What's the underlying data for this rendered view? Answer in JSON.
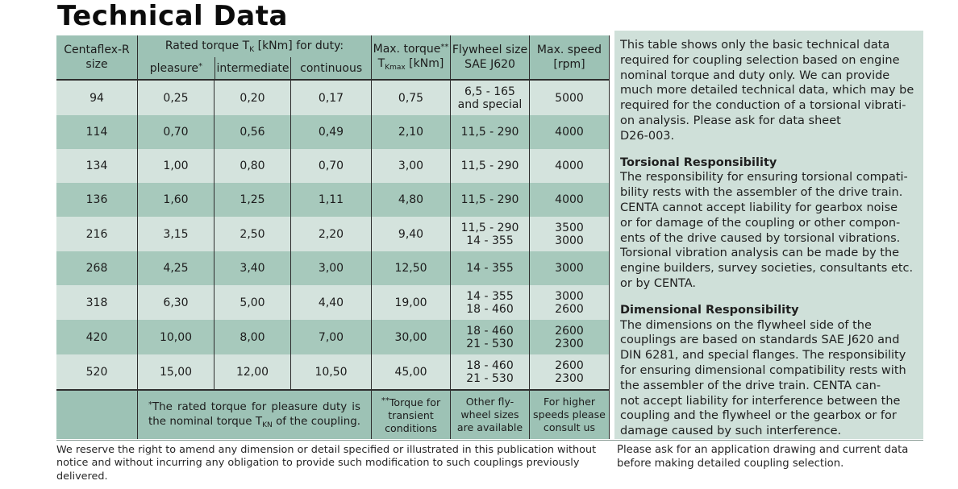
{
  "page": {
    "title": "Technical Data"
  },
  "colors": {
    "header_band": "#9dc2b5",
    "row_light": "#d4e3dd",
    "row_dark": "#a7c9bc",
    "panel_bg": "#cfe0d9",
    "border_dark": "#2e2e2e"
  },
  "table": {
    "header": {
      "size_line1": "Centaflex-R",
      "size_line2": "size",
      "rated_pre": "Rated torque T",
      "rated_sub": "K",
      "rated_post": " [kNm] for duty:",
      "duty": [
        {
          "label": "pleasure",
          "mark": "*"
        },
        {
          "label": "intermediate",
          "mark": ""
        },
        {
          "label": "continuous",
          "mark": ""
        }
      ],
      "max_torque_line1": "Max. torque",
      "max_torque_mark": "**",
      "max_torque_line2_pre": "T",
      "max_torque_line2_sub": "Kmax",
      "max_torque_line2_post": " [kNm]",
      "flywheel_line1": "Flywheel size",
      "flywheel_line2": "SAE J620",
      "speed_line1": "Max. speed",
      "speed_line2": "[rpm]"
    },
    "rows": [
      {
        "size": "94",
        "pleasure": "0,25",
        "intermediate": "0,20",
        "continuous": "0,17",
        "max_torque": "0,75",
        "flywheel1": "6,5 - 165",
        "flywheel2": "and special",
        "speed1": "5000",
        "speed2": ""
      },
      {
        "size": "114",
        "pleasure": "0,70",
        "intermediate": "0,56",
        "continuous": "0,49",
        "max_torque": "2,10",
        "flywheel1": "11,5 - 290",
        "flywheel2": "",
        "speed1": "4000",
        "speed2": ""
      },
      {
        "size": "134",
        "pleasure": "1,00",
        "intermediate": "0,80",
        "continuous": "0,70",
        "max_torque": "3,00",
        "flywheel1": "11,5 - 290",
        "flywheel2": "",
        "speed1": "4000",
        "speed2": ""
      },
      {
        "size": "136",
        "pleasure": "1,60",
        "intermediate": "1,25",
        "continuous": "1,11",
        "max_torque": "4,80",
        "flywheel1": "11,5 - 290",
        "flywheel2": "",
        "speed1": "4000",
        "speed2": ""
      },
      {
        "size": "216",
        "pleasure": "3,15",
        "intermediate": "2,50",
        "continuous": "2,20",
        "max_torque": "9,40",
        "flywheel1": "11,5 - 290",
        "flywheel2": "14 - 355",
        "speed1": "3500",
        "speed2": "3000"
      },
      {
        "size": "268",
        "pleasure": "4,25",
        "intermediate": "3,40",
        "continuous": "3,00",
        "max_torque": "12,50",
        "flywheel1": "14 - 355",
        "flywheel2": "",
        "speed1": "3000",
        "speed2": ""
      },
      {
        "size": "318",
        "pleasure": "6,30",
        "intermediate": "5,00",
        "continuous": "4,40",
        "max_torque": "19,00",
        "flywheel1": "14 - 355",
        "flywheel2": "18 - 460",
        "speed1": "3000",
        "speed2": "2600"
      },
      {
        "size": "420",
        "pleasure": "10,00",
        "intermediate": "8,00",
        "continuous": "7,00",
        "max_torque": "30,00",
        "flywheel1": "18 - 460",
        "flywheel2": "21 - 530",
        "speed1": "2600",
        "speed2": "2300"
      },
      {
        "size": "520",
        "pleasure": "15,00",
        "intermediate": "12,00",
        "continuous": "10,50",
        "max_torque": "45,00",
        "flywheel1": "18 - 460",
        "flywheel2": "21 - 530",
        "speed1": "2600",
        "speed2": "2300"
      }
    ],
    "footer": {
      "note_mark": "*",
      "note_line1": "The rated torque for pleasure duty is",
      "note_line2_pre": "the nominal torque T",
      "note_line2_sub": "KN",
      "note_line2_post": " of the coupling.",
      "torque_mark": "**",
      "torque_line1": "Torque for",
      "torque_line2": "transient",
      "torque_line3": "conditions",
      "fly_line1": "Other fly-",
      "fly_line2": "wheel sizes",
      "fly_line3": "are available",
      "speed_line1": "For higher",
      "speed_line2": "speeds please",
      "speed_line3": "consult us"
    }
  },
  "info_panel": {
    "para1_lines": [
      "This table shows only the basic technical data",
      "required for coupling selection based on engine",
      "nominal torque and duty only. We can provide",
      "much more detailed technical data, which may be",
      "required for the conduction of a torsional vibrati-",
      "on analysis. Please ask for data sheet",
      "D26-003."
    ],
    "sections": [
      {
        "heading": "Torsional Responsibility",
        "lines": [
          "The responsibility for ensuring torsional compati-",
          "bility rests with the assembler of the drive train.",
          "CENTA cannot accept liability for gearbox noise",
          "or for damage of the coupling or other compon-",
          "ents of the drive caused by torsional vibrations.",
          "Torsional vibration analysis can be made by the",
          "engine builders, survey societies, consultants etc.",
          "or by CENTA."
        ]
      },
      {
        "heading": "Dimensional Responsibility",
        "lines": [
          "The dimensions on the flywheel side of the",
          "couplings are based on standards SAE J620 and",
          "DIN 6281, and special flanges. The responsibility",
          "for ensuring dimensional compatibility rests with",
          "the assembler of the drive train. CENTA can-",
          "not accept liability for interference between the",
          "coupling and the flywheel or the gearbox or for",
          "damage caused by such interference."
        ]
      }
    ]
  },
  "bottom_notes": {
    "left_lines": [
      "We reserve the right to amend any dimension or detail specified or illustrated in this publication without",
      "notice and without incurring any obligation to provide such modification to such couplings previously",
      "delivered."
    ],
    "right_lines": [
      "Please ask for an application drawing and current data",
      "before making detailed coupling selection."
    ]
  }
}
